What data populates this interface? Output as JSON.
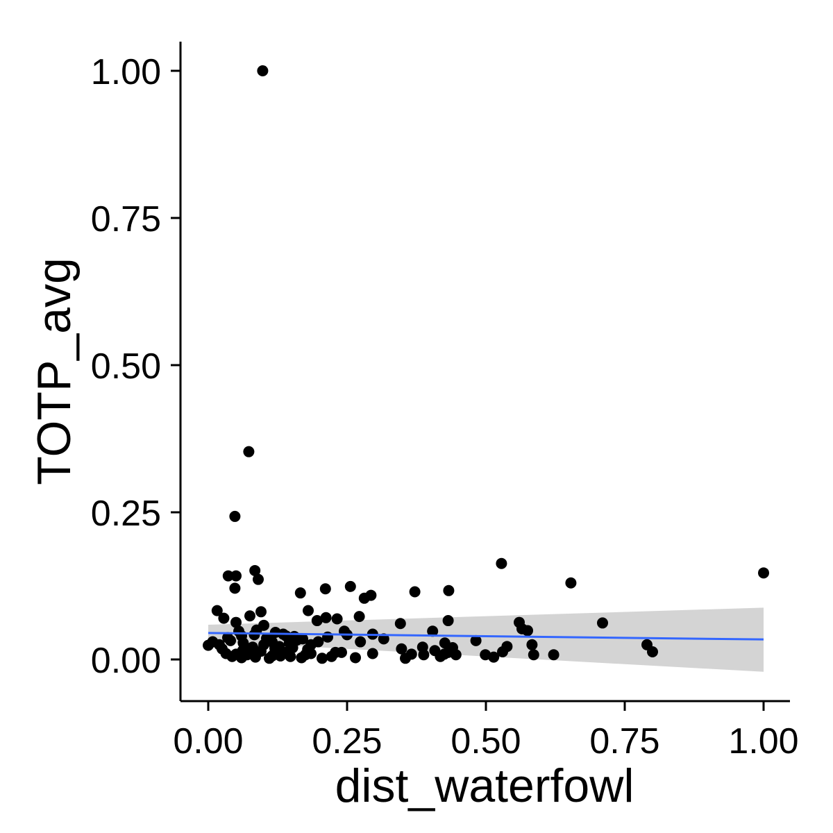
{
  "chart_data": {
    "type": "scatter",
    "title": "",
    "xlabel": "dist_waterfowl",
    "ylabel": "TOTP_avg",
    "xlim": [
      -0.05,
      1.05
    ],
    "ylim": [
      -0.07,
      1.05
    ],
    "xticks": [
      0,
      0.25,
      0.5,
      0.75,
      1
    ],
    "xtick_labels": [
      "0.00",
      "0.25",
      "0.50",
      "0.75",
      "1.00"
    ],
    "yticks": [
      0,
      0.25,
      0.5,
      0.75,
      1
    ],
    "ytick_labels": [
      "0.00",
      "0.25",
      "0.50",
      "0.75",
      "1.00"
    ],
    "grid": false,
    "legend": "none",
    "colors": {
      "points": "#000000",
      "smooth_line": "#3366ff",
      "confidence_band": "#cccccc",
      "axis": "#000000"
    },
    "points": [
      [
        0.098,
        1.0
      ],
      [
        0.073,
        0.353
      ],
      [
        0.048,
        0.243
      ],
      [
        0.528,
        0.163
      ],
      [
        1.0,
        0.147
      ],
      [
        0.084,
        0.151
      ],
      [
        0.036,
        0.142
      ],
      [
        0.05,
        0.142
      ],
      [
        0.09,
        0.136
      ],
      [
        0.653,
        0.13
      ],
      [
        0.256,
        0.124
      ],
      [
        0.048,
        0.121
      ],
      [
        0.211,
        0.12
      ],
      [
        0.433,
        0.117
      ],
      [
        0.372,
        0.115
      ],
      [
        0.166,
        0.113
      ],
      [
        0.293,
        0.109
      ],
      [
        0.281,
        0.104
      ],
      [
        0.016,
        0.083
      ],
      [
        0.095,
        0.081
      ],
      [
        0.18,
        0.083
      ],
      [
        0.028,
        0.07
      ],
      [
        0.075,
        0.074
      ],
      [
        0.272,
        0.073
      ],
      [
        0.212,
        0.071
      ],
      [
        0.232,
        0.069
      ],
      [
        0.196,
        0.066
      ],
      [
        0.432,
        0.066
      ],
      [
        0.56,
        0.063
      ],
      [
        0.71,
        0.062
      ],
      [
        0.346,
        0.061
      ],
      [
        0.05,
        0.063
      ],
      [
        0.1,
        0.058
      ],
      [
        0.575,
        0.049
      ],
      [
        0.404,
        0.048
      ],
      [
        0.245,
        0.048
      ],
      [
        0.565,
        0.052
      ],
      [
        0.121,
        0.046
      ],
      [
        0.087,
        0.05
      ],
      [
        0.135,
        0.043
      ],
      [
        0.296,
        0.043
      ],
      [
        0.06,
        0.04
      ],
      [
        0.155,
        0.039
      ],
      [
        0.035,
        0.037
      ],
      [
        0.482,
        0.032
      ],
      [
        0.198,
        0.03
      ],
      [
        0.274,
        0.03
      ],
      [
        0.316,
        0.035
      ],
      [
        0.426,
        0.028
      ],
      [
        0.386,
        0.021
      ],
      [
        0.538,
        0.022
      ],
      [
        0.79,
        0.025
      ],
      [
        0.0,
        0.024
      ],
      [
        0.583,
        0.025
      ],
      [
        0.348,
        0.018
      ],
      [
        0.025,
        0.018
      ],
      [
        0.07,
        0.016
      ],
      [
        0.12,
        0.019
      ],
      [
        0.179,
        0.017
      ],
      [
        0.229,
        0.012
      ],
      [
        0.296,
        0.01
      ],
      [
        0.366,
        0.009
      ],
      [
        0.425,
        0.009
      ],
      [
        0.446,
        0.008
      ],
      [
        0.499,
        0.008
      ],
      [
        0.53,
        0.013
      ],
      [
        0.8,
        0.013
      ],
      [
        0.586,
        0.008
      ],
      [
        0.622,
        0.008
      ],
      [
        0.418,
        0.005
      ],
      [
        0.514,
        0.004
      ],
      [
        0.043,
        0.005
      ],
      [
        0.06,
        0.003
      ],
      [
        0.085,
        0.004
      ],
      [
        0.11,
        0.002
      ],
      [
        0.13,
        0.006
      ],
      [
        0.168,
        0.003
      ],
      [
        0.205,
        0.002
      ],
      [
        0.265,
        0.003
      ],
      [
        0.355,
        0.002
      ],
      [
        0.05,
        0.009
      ],
      [
        0.14,
        0.012
      ],
      [
        0.152,
        0.02
      ],
      [
        0.008,
        0.03
      ],
      [
        0.02,
        0.025
      ],
      [
        0.063,
        0.028
      ],
      [
        0.08,
        0.021
      ],
      [
        0.1,
        0.025
      ],
      [
        0.115,
        0.03
      ],
      [
        0.128,
        0.022
      ],
      [
        0.146,
        0.028
      ],
      [
        0.16,
        0.033
      ],
      [
        0.185,
        0.025
      ],
      [
        0.215,
        0.038
      ],
      [
        0.25,
        0.042
      ],
      [
        0.115,
        0.006
      ],
      [
        0.095,
        0.014
      ],
      [
        0.04,
        0.032
      ],
      [
        0.175,
        0.008
      ],
      [
        0.07,
        0.008
      ],
      [
        0.032,
        0.01
      ],
      [
        0.148,
        0.005
      ],
      [
        0.222,
        0.005
      ],
      [
        0.388,
        0.008
      ],
      [
        0.432,
        0.012
      ],
      [
        0.44,
        0.02
      ],
      [
        0.408,
        0.015
      ],
      [
        0.055,
        0.048
      ],
      [
        0.083,
        0.042
      ],
      [
        0.105,
        0.036
      ],
      [
        0.14,
        0.04
      ],
      [
        0.17,
        0.035
      ],
      [
        0.185,
        0.01
      ],
      [
        0.12,
        0.012
      ],
      [
        0.085,
        0.01
      ],
      [
        0.062,
        0.015
      ],
      [
        0.24,
        0.012
      ]
    ],
    "smooth": {
      "method": "linear",
      "x": [
        0.0,
        1.0
      ],
      "y": [
        0.045,
        0.034
      ],
      "band_lower": [
        0.031,
        -0.021
      ],
      "band_upper": [
        0.059,
        0.088
      ]
    }
  }
}
